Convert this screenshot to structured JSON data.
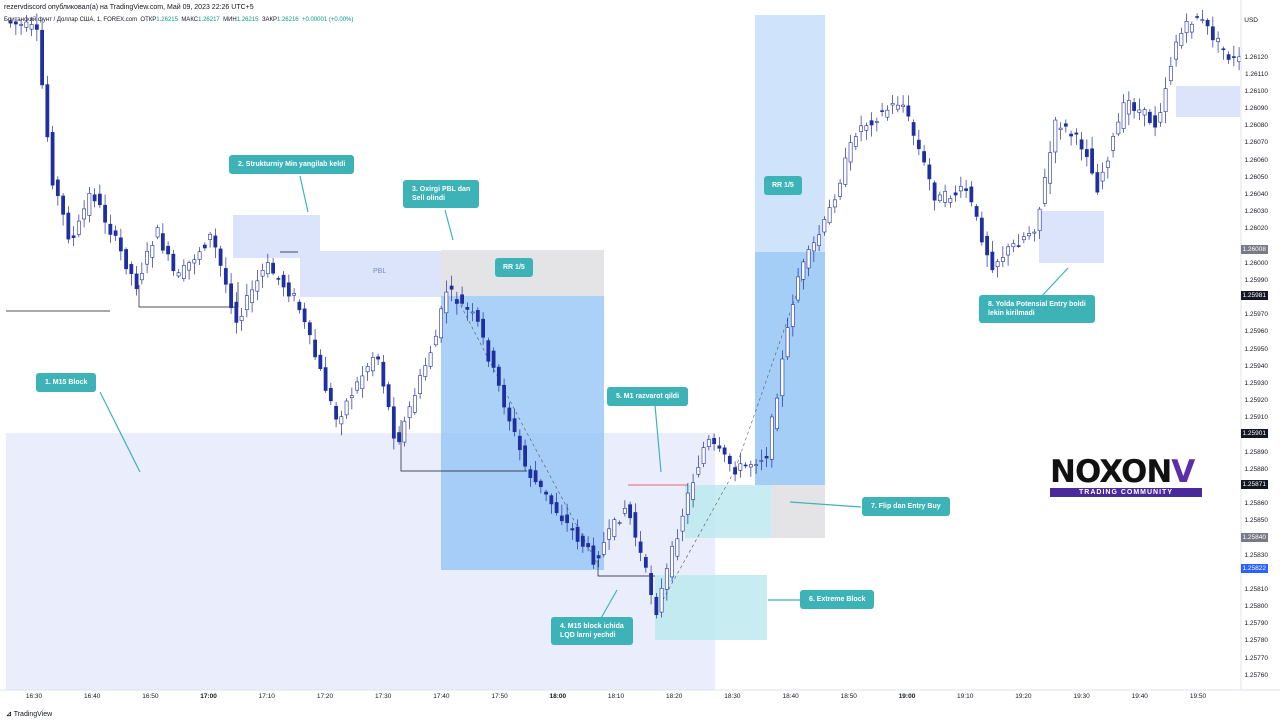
{
  "header": {
    "published_by": "rezervdiscord опубликовал(а) на TradingView.com, Май 09, 2023 22:26 UTC+5",
    "symbol": "Британский фунт / Доллар США, 1, FOREX.com",
    "ohlc": {
      "open_label": "ОТКР",
      "open": "1.26215",
      "high_label": "МАКС",
      "high": "1.26217",
      "low_label": "МИН",
      "low": "1.26215",
      "close_label": "ЗАКР",
      "close": "1.26216",
      "change": "+0.00001 (+0.00%)"
    }
  },
  "price_axis": {
    "currency": "USD",
    "labels": [
      "1.26120",
      "1.26110",
      "1.26100",
      "1.26090",
      "1.26080",
      "1.26070",
      "1.26060",
      "1.26050",
      "1.26040",
      "1.26030",
      "1.26020",
      "1.26000",
      "1.25990",
      "1.25970",
      "1.25960",
      "1.25950",
      "1.25940",
      "1.25930",
      "1.25920",
      "1.25910",
      "1.25890",
      "1.25880",
      "1.25860",
      "1.25850",
      "1.25830",
      "1.25810",
      "1.25800",
      "1.25790",
      "1.25780",
      "1.25770",
      "1.25760"
    ],
    "tags": [
      {
        "text": "1.26008",
        "bg": "#787b86"
      },
      {
        "text": "1.25981",
        "bg": "#131722"
      },
      {
        "text": "1.25901",
        "bg": "#131722"
      },
      {
        "text": "1.25871",
        "bg": "#131722"
      },
      {
        "text": "1.25840",
        "bg": "#787b86"
      },
      {
        "text": "1.25822",
        "bg": "#2962ff"
      }
    ]
  },
  "time_axis": [
    "16:30",
    "16:40",
    "16:50",
    "17:00",
    "17:10",
    "17:20",
    "17:30",
    "17:40",
    "17:50",
    "18:00",
    "18:10",
    "18:20",
    "18:30",
    "18:40",
    "18:50",
    "19:00",
    "19:10",
    "19:20",
    "19:30",
    "19:40",
    "19:50"
  ],
  "annotations": {
    "c1": "1. M15 Block",
    "c2": "2. Strukturniy Min yangilab keldi",
    "c3": "3. Oxirgi PBL dan\nSell olindi",
    "c4": "4. M15 block ichida\nLQD larni yechdi",
    "c5": "5. M1 razvarot qildi",
    "c6": "6. Extreme Block",
    "c7": "7. Flip dan Entry Buy",
    "c8": "8. Yolda Potensial Entry boldi\nlekin kirilmadi",
    "rr1": "RR 1/5",
    "rr2": "RR 1/5",
    "pbl": "PBL"
  },
  "logo": {
    "text": "NOXON",
    "letter": "V",
    "tagline": "TRADING COMMUNITY"
  },
  "footer": {
    "brand": "TradingView"
  },
  "colors": {
    "candle_up": "#ffffff",
    "candle_down": "#1e2fa0",
    "callout": "#3db3b8",
    "zone_blue": "#e8ecfb",
    "target_blue": "#90c4f5",
    "stop_gray": "#e5e5e8"
  }
}
